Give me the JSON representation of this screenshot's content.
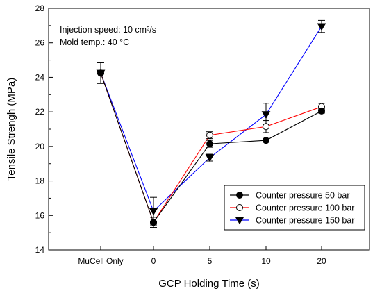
{
  "chart_data": {
    "type": "line",
    "xlabel": "GCP Holding Time (s)",
    "ylabel": "Tensile Strengh (MPa)",
    "categories": [
      "MuCell Only",
      "0",
      "5",
      "10",
      "20"
    ],
    "ylim": [
      14,
      28
    ],
    "yticks": [
      14,
      16,
      18,
      20,
      22,
      24,
      26,
      28
    ],
    "grid": false,
    "legend_position": "bottom-right",
    "annotations": {
      "line1": "Injection speed: 10 cm³/s",
      "line2": "Mold temp.: 40 °C"
    },
    "series": [
      {
        "name": "Counter pressure 50 bar",
        "color": "#000000",
        "marker": "filled-circle",
        "values": [
          24.25,
          15.6,
          20.15,
          20.35,
          22.05
        ],
        "errors": [
          0.6,
          0.3,
          0.2,
          0.1,
          0.12
        ]
      },
      {
        "name": "Counter pressure 100 bar",
        "color": "#ff0000",
        "marker": "open-circle",
        "values": [
          24.25,
          15.6,
          20.65,
          21.15,
          22.3
        ],
        "errors": [
          0.6,
          0.3,
          0.2,
          0.35,
          0.2
        ]
      },
      {
        "name": "Counter pressure 150 bar",
        "color": "#0000ff",
        "marker": "filled-triangle-down",
        "values": [
          24.25,
          16.25,
          19.35,
          21.85,
          26.95
        ],
        "errors": [
          0.6,
          0.8,
          0.2,
          0.65,
          0.35
        ]
      }
    ]
  }
}
